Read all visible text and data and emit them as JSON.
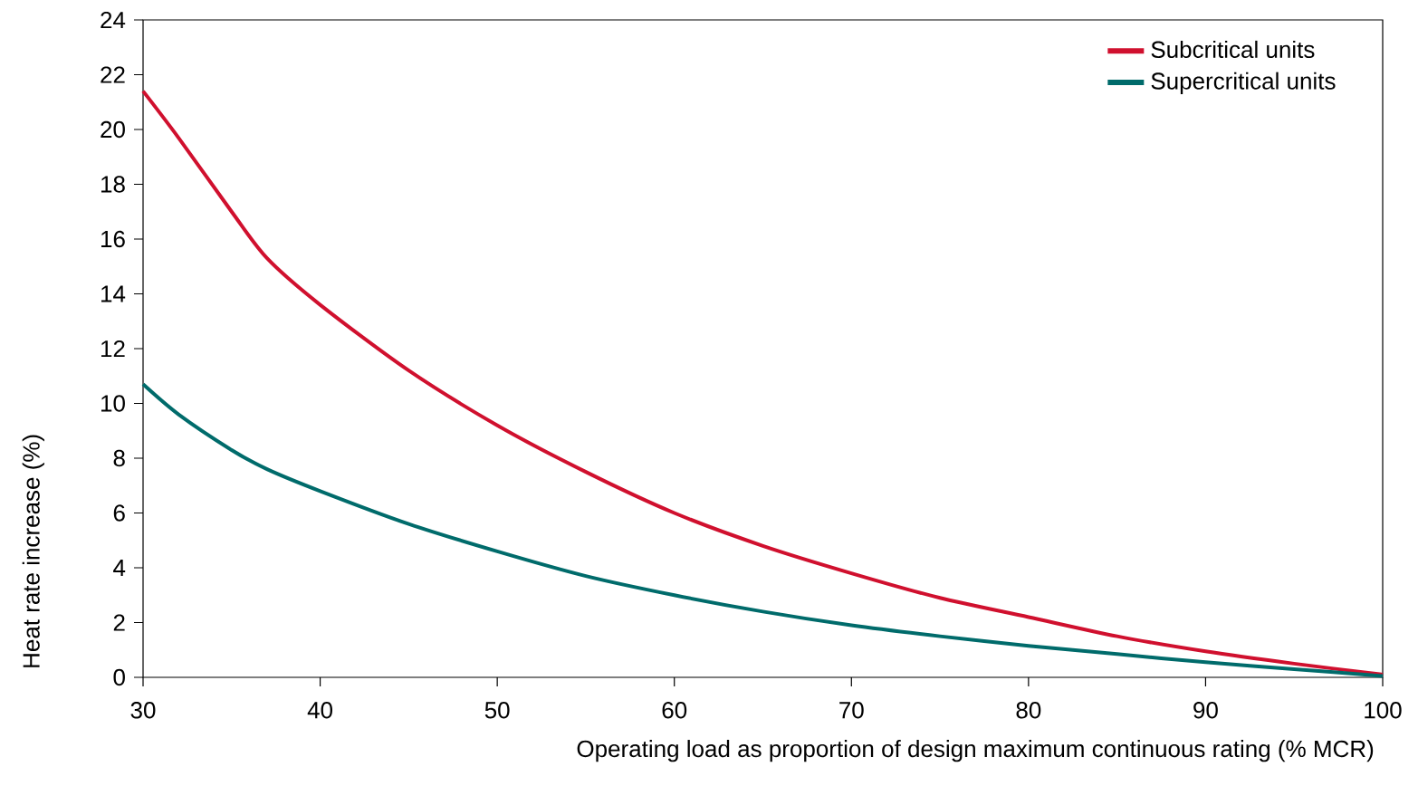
{
  "chart_data": {
    "type": "line",
    "xlabel": "Operating load as proportion of design maximum continuous rating (% MCR)",
    "ylabel": "Heat rate increase (%)",
    "x": [
      30,
      32,
      35,
      37,
      40,
      45,
      50,
      55,
      60,
      65,
      70,
      75,
      80,
      85,
      90,
      95,
      100
    ],
    "series": [
      {
        "name": "Subcritical units",
        "color": "#d0102e",
        "values": [
          21.4,
          19.7,
          17.0,
          15.3,
          13.6,
          11.2,
          9.2,
          7.5,
          6.0,
          4.8,
          3.8,
          2.9,
          2.2,
          1.5,
          0.95,
          0.5,
          0.1
        ]
      },
      {
        "name": "Supercritical units",
        "color": "#006b6b",
        "values": [
          10.7,
          9.6,
          8.3,
          7.6,
          6.8,
          5.6,
          4.6,
          3.7,
          3.0,
          2.4,
          1.9,
          1.5,
          1.15,
          0.85,
          0.55,
          0.3,
          0.05
        ]
      }
    ],
    "xlim": [
      30,
      100
    ],
    "ylim": [
      0,
      24
    ],
    "xticks": [
      30,
      40,
      50,
      60,
      70,
      80,
      90,
      100
    ],
    "yticks": [
      0,
      2,
      4,
      6,
      8,
      10,
      12,
      14,
      16,
      18,
      20,
      22,
      24
    ],
    "legend": "top right",
    "grid": false,
    "marker": "none",
    "line_style": "solid"
  }
}
